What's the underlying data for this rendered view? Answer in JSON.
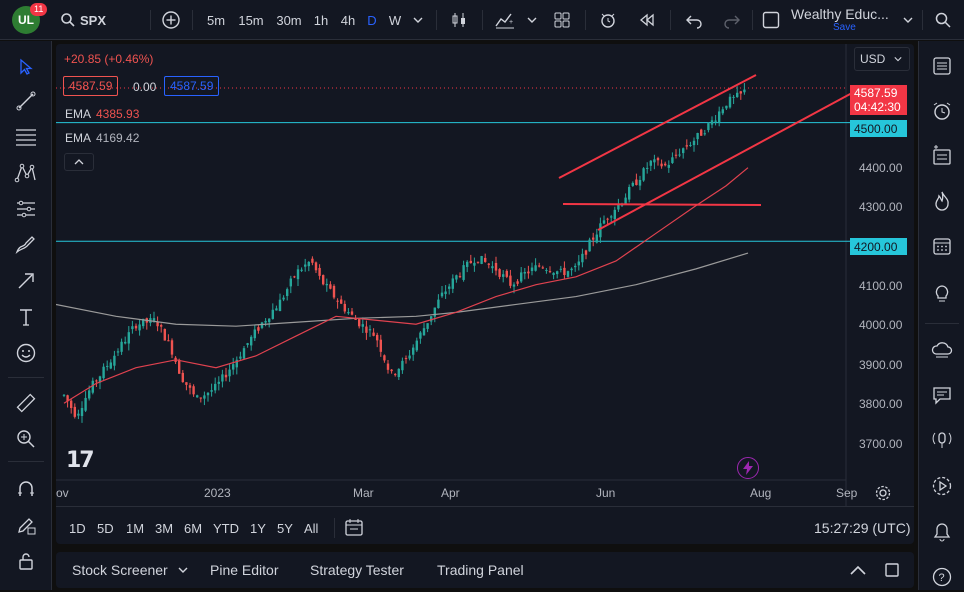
{
  "toolbar": {
    "avatar_text": "UL",
    "notification_count": "11",
    "symbol": "SPX",
    "intervals": [
      "5m",
      "15m",
      "30m",
      "1h",
      "4h",
      "D",
      "W"
    ],
    "active_interval": "D",
    "layout_name": "Wealthy Educ...",
    "save_label": "Save"
  },
  "legend": {
    "change": "+20.85 (+0.46%)",
    "bid": "4587.59",
    "spread": "0.00",
    "ask": "4587.59",
    "ema1_label": "EMA",
    "ema1_value": "4385.93",
    "ema2_label": "EMA",
    "ema2_value": "4169.42"
  },
  "price_axis": {
    "currency": "USD",
    "current_price": "4587.59",
    "countdown": "04:42:30",
    "level_4500": "4500.00",
    "level_4200": "4200.00",
    "ticks": [
      "4400.00",
      "4300.00",
      "4100.00",
      "4000.00",
      "3900.00",
      "3800.00",
      "3700.00"
    ]
  },
  "time_axis": {
    "labels": [
      "ov",
      "2023",
      "Mar",
      "Apr",
      "Jun",
      "Aug",
      "Sep"
    ]
  },
  "range_bar": {
    "ranges": [
      "1D",
      "5D",
      "1M",
      "3M",
      "6M",
      "YTD",
      "1Y",
      "5Y",
      "All"
    ],
    "clock": "15:27:29 (UTC)"
  },
  "bottom_tabs": {
    "stock_screener": "Stock Screener",
    "pine_editor": "Pine Editor",
    "strategy_tester": "Strategy Tester",
    "trading_panel": "Trading Panel"
  },
  "logo_text": "17",
  "colors": {
    "up": "#26a69a",
    "down": "#ef5350",
    "ema_fast": "#e0424f",
    "ema_slow": "#9a9a9a",
    "hline": "#26c6da",
    "trendline": "#f23645",
    "accent": "#2962ff"
  },
  "chart_data": {
    "type": "candlestick",
    "symbol": "SPX",
    "ylim": [
      3660,
      4660
    ],
    "horizontal_levels": [
      4500,
      4200
    ],
    "ema_fast_last": 4385.93,
    "ema_slow_last": 4169.42,
    "last_price": 4587.59
  }
}
